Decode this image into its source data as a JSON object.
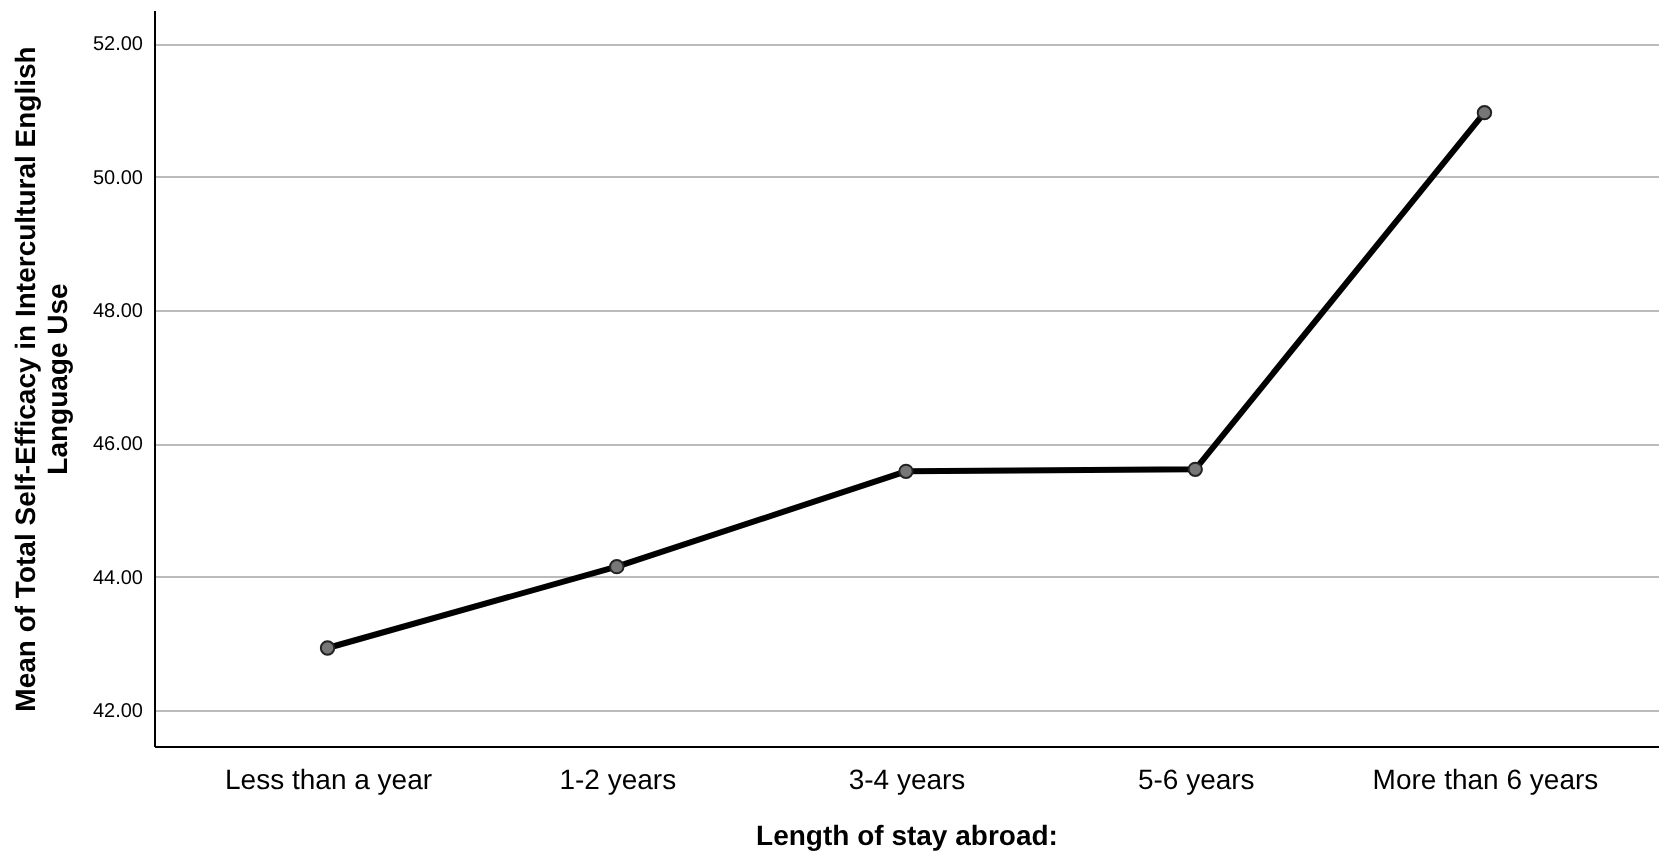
{
  "chart_data": {
    "type": "line",
    "xlabel": "Length of stay abroad:",
    "ylabel": "Mean of Total Self-Efficacy in Intercultural English Language Use",
    "categories": [
      "Less than a year",
      "1-2 years",
      "3-4 years",
      "5-6 years",
      "More than 6 years"
    ],
    "series": [
      {
        "color": "#000000",
        "values": [
          42.93,
          44.15,
          45.58,
          45.61,
          50.96
        ]
      }
    ],
    "ylim": [
      41.46,
      52.5
    ],
    "yticks": [
      {
        "value": 42,
        "label": "42.00"
      },
      {
        "value": 44,
        "label": "44.00"
      },
      {
        "value": 46,
        "label": "46.00"
      },
      {
        "value": 48,
        "label": "48.00"
      },
      {
        "value": 50,
        "label": "50.00"
      },
      {
        "value": 52,
        "label": "52.00"
      }
    ],
    "grid": "y",
    "marker": "circle",
    "line_style": "solid"
  }
}
